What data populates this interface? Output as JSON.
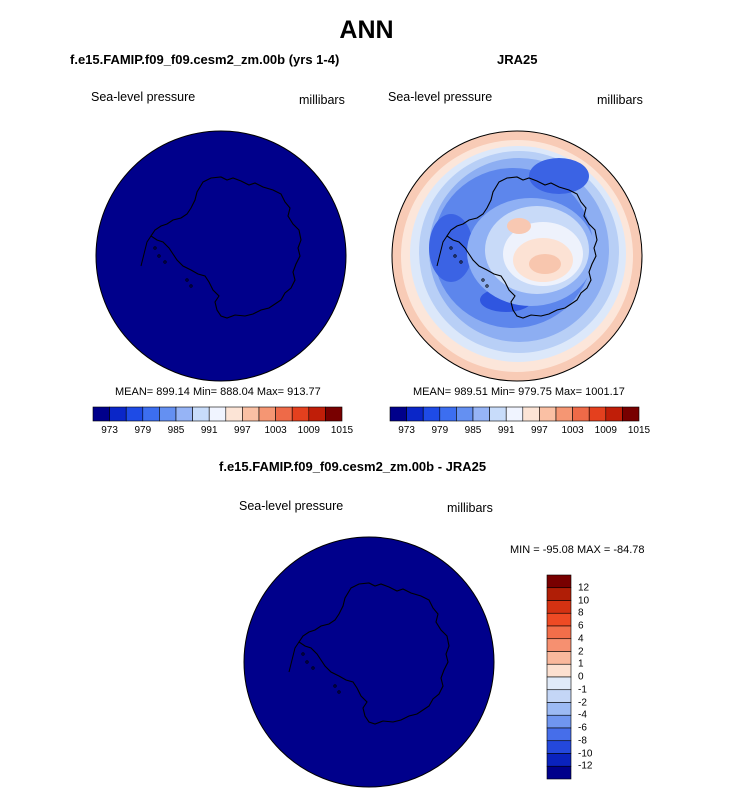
{
  "title": "ANN",
  "panels": [
    {
      "id": "model",
      "title": "f.e15.FAMIP.f09_f09.cesm2_zm.00b (yrs 1-4)",
      "left_label": "Sea-level pressure",
      "right_label": "millibars",
      "stats": "MEAN= 899.14  Min= 888.04  Max= 913.77",
      "fill_color": "#00008B"
    },
    {
      "id": "obs",
      "title": "JRA25",
      "left_label": "Sea-level pressure",
      "right_label": "millibars",
      "stats": "MEAN= 989.51  Min= 979.75  Max= 1001.17"
    },
    {
      "id": "diff",
      "title": "f.e15.FAMIP.f09_f09.cesm2_zm.00b - JRA25",
      "left_label": "Sea-level pressure",
      "right_label": "millibars",
      "stats": "MIN = -95.08 MAX = -84.78",
      "fill_color": "#00008B"
    }
  ],
  "colorbar_horizontal": {
    "colors": [
      "#00008B",
      "#0A26C8",
      "#1E4BE6",
      "#3C6EF0",
      "#6490F2",
      "#96B4F6",
      "#C8DCFA",
      "#F0F4FF",
      "#FCE4D6",
      "#FAC0A4",
      "#F59673",
      "#EE6A48",
      "#E4401E",
      "#C01E08",
      "#780000"
    ],
    "tick_labels": [
      "973",
      "979",
      "985",
      "991",
      "997",
      "1003",
      "1009",
      "1015"
    ]
  },
  "colorbar_vertical": {
    "colors": [
      "#780000",
      "#B01E06",
      "#D43212",
      "#EE4A24",
      "#F26E4A",
      "#F69070",
      "#FAB89C",
      "#FCE0D0",
      "#E0EAF8",
      "#C4D6F6",
      "#9CBAF4",
      "#7096F0",
      "#466EEA",
      "#2448DC",
      "#0A22BE",
      "#00008B"
    ],
    "tick_labels": [
      "12",
      "10",
      "8",
      "6",
      "4",
      "2",
      "1",
      "0",
      "-1",
      "-2",
      "-4",
      "-6",
      "-8",
      "-10",
      "-12"
    ]
  },
  "palette": {
    "deep_blue": "#00008B",
    "blue_dark": "#2D5BE8",
    "blue_mid": "#5A84EE",
    "blue_light": "#8FB0F4",
    "blue_pale": "#C6D9F8",
    "near_white": "#F4F6FF",
    "peach_pale": "#FCE4D8",
    "peach": "#F8C8B0",
    "outline": "#000000"
  }
}
